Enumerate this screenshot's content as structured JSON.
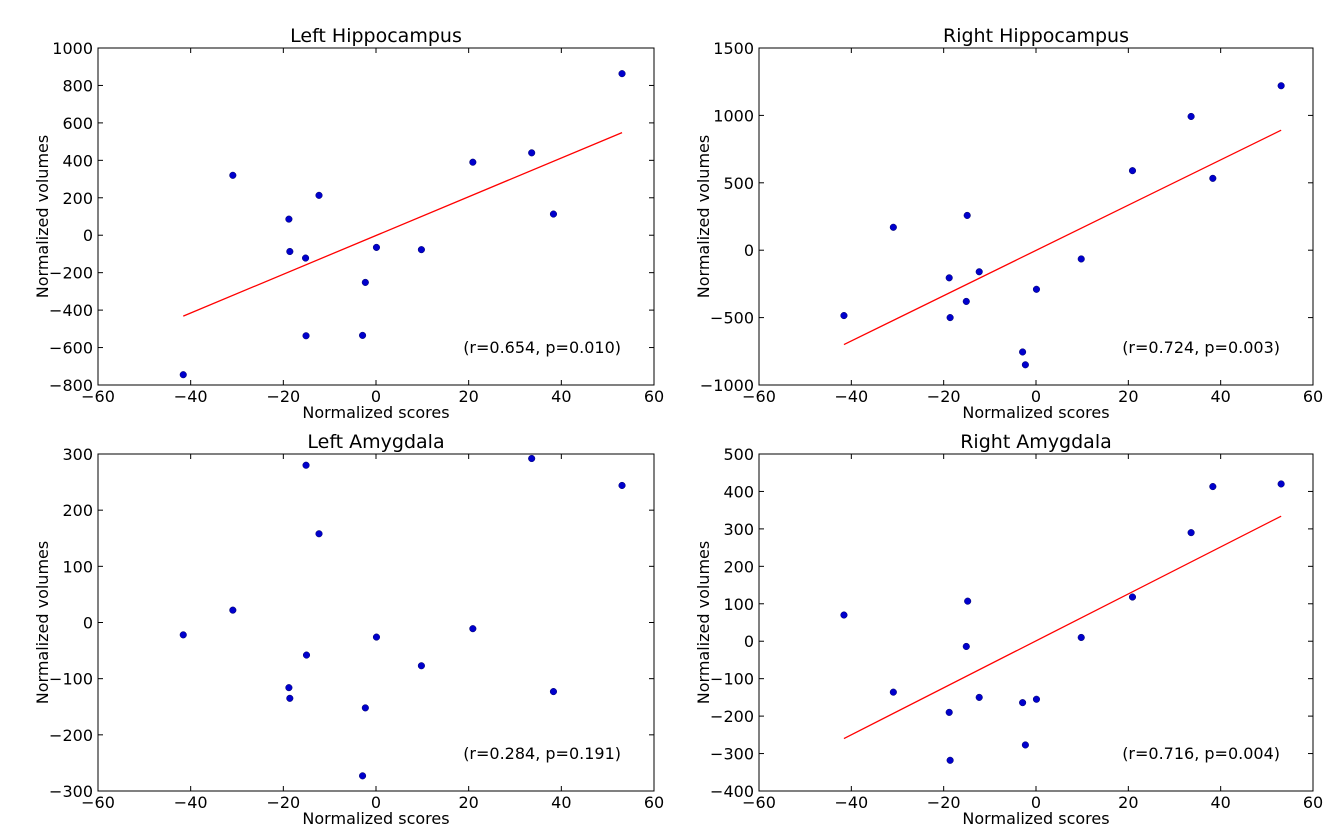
{
  "chart_data": [
    {
      "type": "scatter",
      "title": "Left Hippocampus",
      "xlabel": "Normalized scores",
      "ylabel": "Normalized volumes",
      "xlim": [
        -60,
        60
      ],
      "ylim": [
        -800,
        1000
      ],
      "xticks": [
        -60,
        -40,
        -20,
        0,
        20,
        40,
        60
      ],
      "yticks": [
        -800,
        -600,
        -400,
        -200,
        0,
        200,
        400,
        600,
        800,
        1000
      ],
      "x": [
        -41.6,
        -30.9,
        -18.8,
        -18.6,
        -15.1,
        -12.3,
        -15.2,
        -2.9,
        -2.3,
        0.1,
        9.8,
        20.9,
        33.6,
        38.3,
        53.1
      ],
      "y": [
        -745,
        320,
        86,
        -87,
        -537,
        213,
        -122,
        -535,
        -252,
        -65,
        -77,
        390,
        440,
        113,
        863
      ],
      "fit_line": {
        "x": [
          -41.6,
          53.1
        ],
        "y": [
          -432,
          548
        ]
      },
      "annotation": "(r=0.654, p=0.010)",
      "point_color": "#0000cc",
      "line_color": "#ff0000",
      "grid": false
    },
    {
      "type": "scatter",
      "title": "Right Hippocampus",
      "xlabel": "Normalized scores",
      "ylabel": "Normalized volumes",
      "xlim": [
        -60,
        60
      ],
      "ylim": [
        -1000,
        1500
      ],
      "xticks": [
        -60,
        -40,
        -20,
        0,
        20,
        40,
        60
      ],
      "yticks": [
        -1000,
        -500,
        0,
        500,
        1000,
        1500
      ],
      "x": [
        -41.6,
        -30.9,
        -18.8,
        -18.6,
        -15.1,
        -14.9,
        -12.3,
        -2.9,
        -2.3,
        0.1,
        9.8,
        20.9,
        33.6,
        38.3,
        53.1
      ],
      "y": [
        -485,
        170,
        -205,
        -500,
        -380,
        258,
        -160,
        -755,
        -850,
        -290,
        -65,
        590,
        992,
        533,
        1220
      ],
      "fit_line": {
        "x": [
          -41.6,
          53.1
        ],
        "y": [
          -700,
          890
        ]
      },
      "annotation": "(r=0.724, p=0.003)",
      "point_color": "#0000cc",
      "line_color": "#ff0000",
      "grid": false
    },
    {
      "type": "scatter",
      "title": "Left Amygdala",
      "xlabel": "Normalized scores",
      "ylabel": "Normalized volumes",
      "xlim": [
        -60,
        60
      ],
      "ylim": [
        -300,
        300
      ],
      "xticks": [
        -60,
        -40,
        -20,
        0,
        20,
        40,
        60
      ],
      "yticks": [
        -300,
        -200,
        -100,
        0,
        100,
        200,
        300
      ],
      "x": [
        -41.6,
        -30.9,
        -18.8,
        -18.6,
        -15.1,
        -15.0,
        -12.3,
        -2.9,
        -2.3,
        0.1,
        9.8,
        20.9,
        33.6,
        38.3,
        53.1
      ],
      "y": [
        -22,
        22,
        -116,
        -135,
        280,
        -58,
        158,
        -273,
        -152,
        -26,
        -77,
        -11,
        292,
        -123,
        244
      ],
      "annotation": "(r=0.284, p=0.191)",
      "point_color": "#0000cc",
      "grid": false
    },
    {
      "type": "scatter",
      "title": "Right Amygdala",
      "xlabel": "Normalized scores",
      "ylabel": "Normalized volumes",
      "xlim": [
        -60,
        60
      ],
      "ylim": [
        -400,
        500
      ],
      "xticks": [
        -60,
        -40,
        -20,
        0,
        20,
        40,
        60
      ],
      "yticks": [
        -400,
        -300,
        -200,
        -100,
        0,
        100,
        200,
        300,
        400,
        500
      ],
      "x": [
        -41.6,
        -30.9,
        -18.8,
        -18.6,
        -15.1,
        -14.8,
        -12.3,
        -2.9,
        -2.3,
        0.1,
        9.8,
        20.9,
        33.6,
        38.3,
        53.1
      ],
      "y": [
        70,
        -136,
        -190,
        -318,
        -14,
        107,
        -150,
        -164,
        -277,
        -155,
        10,
        118,
        290,
        413,
        420
      ],
      "fit_line": {
        "x": [
          -41.6,
          53.1
        ],
        "y": [
          -260,
          334
        ]
      },
      "annotation": "(r=0.716, p=0.004)",
      "point_color": "#0000cc",
      "line_color": "#ff0000",
      "grid": false
    }
  ]
}
